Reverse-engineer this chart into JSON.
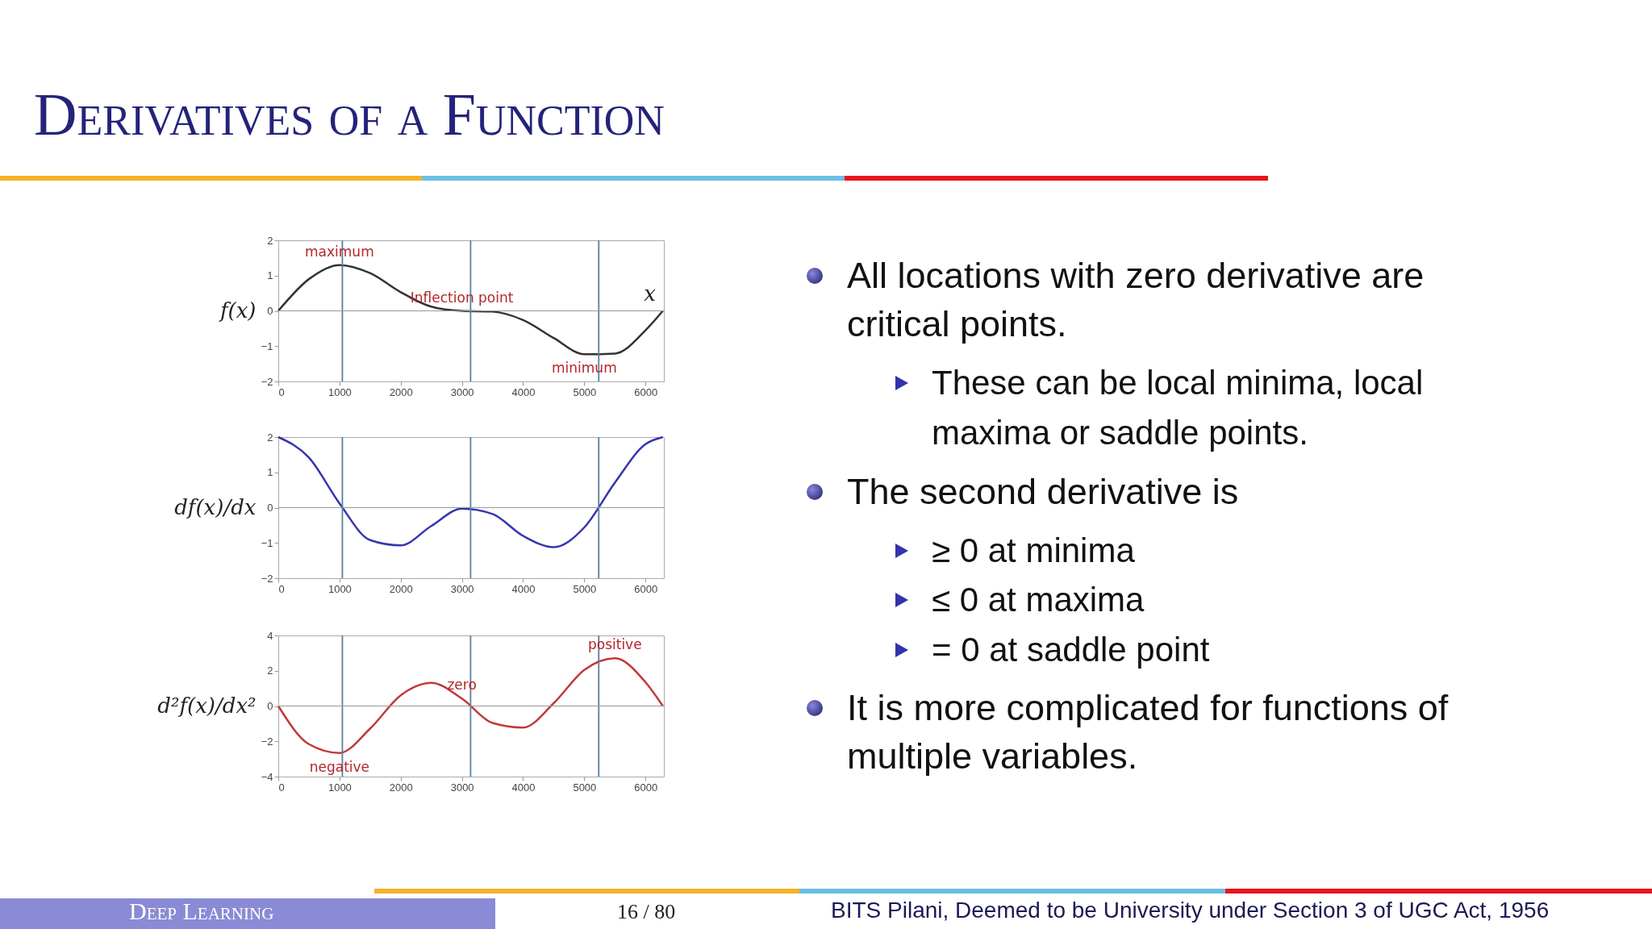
{
  "chart_data": [
    {
      "type": "line",
      "ylabel": "f(x)",
      "x": [
        0,
        500,
        1000,
        1500,
        2000,
        2500,
        3000,
        3500,
        4000,
        4500,
        5000,
        5500,
        6000,
        6283
      ],
      "series": [
        {
          "color": "#333333",
          "values": [
            0,
            0.9,
            1.3,
            1.07,
            0.53,
            0.12,
            0,
            -0.02,
            -0.26,
            -0.77,
            -1.23,
            -1.21,
            -0.55,
            0
          ]
        }
      ],
      "xlim": [
        0,
        6300
      ],
      "xticks": [
        0,
        1000,
        2000,
        3000,
        4000,
        5000,
        6000
      ],
      "ylim": [
        -2,
        2
      ],
      "yticks": [
        -2,
        -1,
        0,
        1,
        2
      ],
      "ref_lines": [
        {
          "axis": "x",
          "value": 1047,
          "color": "#5a7fa0"
        },
        {
          "axis": "x",
          "value": 3142,
          "color": "#5a7fa0"
        },
        {
          "axis": "x",
          "value": 5236,
          "color": "#5a7fa0"
        },
        {
          "axis": "y",
          "value": 0,
          "color": "#999999"
        }
      ],
      "xlabel": "x",
      "annotations": [
        {
          "text": "maximum",
          "x": 1000,
          "y": 1.3
        },
        {
          "text": "Inflection point",
          "x": 3000,
          "y": 0
        },
        {
          "text": "minimum",
          "x": 5000,
          "y": -1.23
        }
      ]
    },
    {
      "type": "line",
      "ylabel": "df(x)/dx",
      "x": [
        0,
        500,
        1000,
        1500,
        2000,
        2500,
        3000,
        3500,
        4000,
        4500,
        5000,
        5500,
        6000,
        6283
      ],
      "series": [
        {
          "color": "#3535b0",
          "values": [
            2,
            1.42,
            0.12,
            -0.92,
            -1.07,
            -0.52,
            -0.03,
            -0.18,
            -0.8,
            -1.12,
            -0.56,
            0.71,
            1.8,
            2
          ]
        }
      ],
      "xlim": [
        0,
        6300
      ],
      "xticks": [
        0,
        1000,
        2000,
        3000,
        4000,
        5000,
        6000
      ],
      "ylim": [
        -2,
        2
      ],
      "yticks": [
        -2,
        -1,
        0,
        1,
        2
      ],
      "ref_lines": [
        {
          "axis": "x",
          "value": 1047,
          "color": "#5a7fa0"
        },
        {
          "axis": "x",
          "value": 3142,
          "color": "#5a7fa0"
        },
        {
          "axis": "x",
          "value": 5236,
          "color": "#5a7fa0"
        },
        {
          "axis": "y",
          "value": 0,
          "color": "#999999"
        }
      ]
    },
    {
      "type": "line",
      "ylabel": "d²f(x)/dx²",
      "x": [
        0,
        500,
        1000,
        1500,
        2000,
        2500,
        3000,
        3500,
        4000,
        4500,
        5000,
        5500,
        6000,
        6283
      ],
      "series": [
        {
          "color": "#c0393b",
          "values": [
            0,
            -2.16,
            -2.66,
            -1.28,
            0.61,
            1.32,
            0.42,
            -0.96,
            -1.22,
            0.16,
            2.05,
            2.71,
            1.35,
            0
          ]
        }
      ],
      "xlim": [
        0,
        6300
      ],
      "xticks": [
        0,
        1000,
        2000,
        3000,
        4000,
        5000,
        6000
      ],
      "ylim": [
        -4,
        4
      ],
      "yticks": [
        -4,
        -2,
        0,
        2,
        4
      ],
      "ref_lines": [
        {
          "axis": "x",
          "value": 1047,
          "color": "#5a7fa0"
        },
        {
          "axis": "x",
          "value": 3142,
          "color": "#5a7fa0"
        },
        {
          "axis": "x",
          "value": 5236,
          "color": "#5a7fa0"
        },
        {
          "axis": "y",
          "value": 0,
          "color": "#999999"
        }
      ],
      "annotations": [
        {
          "text": "negative",
          "x": 1000,
          "y": -2.66
        },
        {
          "text": "zero",
          "x": 3000,
          "y": 0.42
        },
        {
          "text": "positive",
          "x": 5500,
          "y": 2.71
        }
      ]
    },
    {
      "type": "other",
      "title": "Derivatives of a Function",
      "annotations": [
        "All locations with zero derivative are critical points.",
        "These can be local minima, local maxima or saddle points.",
        "The second derivative is",
        "≥ 0 at minima",
        "≤ 0 at maxima",
        "= 0 at saddle point",
        "It is more complicated for functions of multiple variables.",
        "Deep Learning",
        "16 / 80",
        "BITS Pilani, Deemed to be University under Section 3 of UGC Act, 1956"
      ]
    }
  ]
}
